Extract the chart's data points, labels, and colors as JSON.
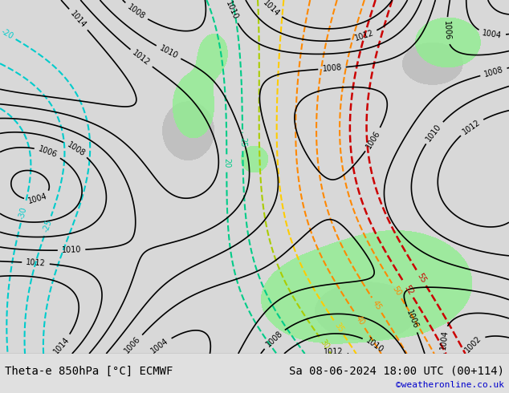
{
  "title_left": "Theta-e 850hPa [°C] ECMWF",
  "title_right": "Sa 08-06-2024 18:00 UTC (00+114)",
  "credit": "©weatheronline.co.uk",
  "background_color": "#d8d8d8",
  "land_color": "#c8c8c8",
  "green_area_color": "#90ee90",
  "bottom_bar_color": "#e0e0e0",
  "title_fontsize": 10,
  "credit_color": "#0000cc"
}
